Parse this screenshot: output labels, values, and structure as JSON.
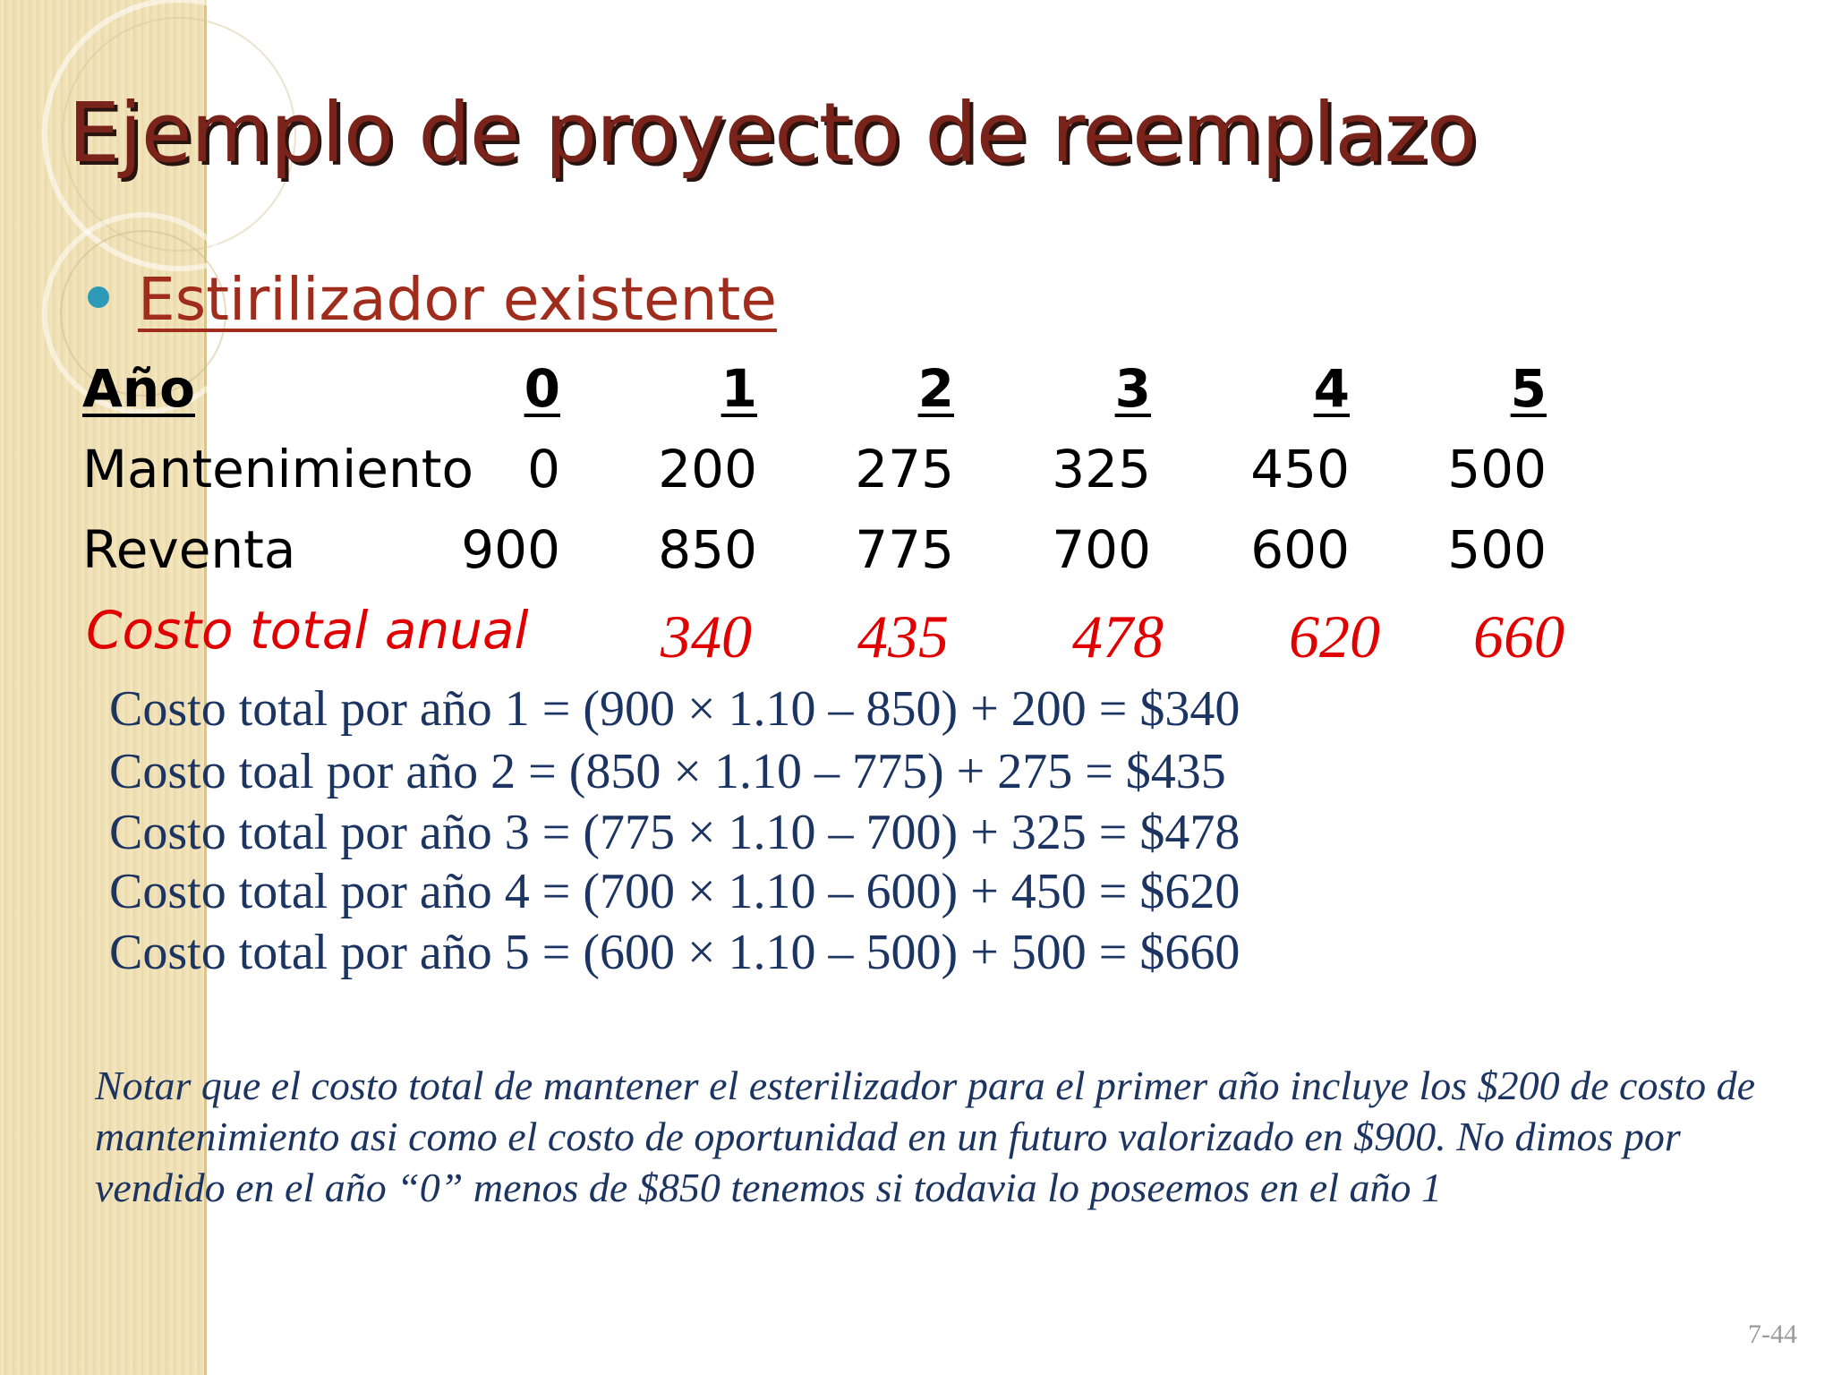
{
  "slide": {
    "title": "Ejemplo de proyecto de reemplazo",
    "subtitle": "Estirilizador existente",
    "table": {
      "header_label": "Año",
      "years": [
        "0",
        "1",
        "2",
        "3",
        "4",
        "5"
      ],
      "rows": [
        {
          "label": "Mantenimiento",
          "values": [
            "0",
            "200",
            "275",
            "325",
            "450",
            "500"
          ]
        },
        {
          "label": "Reventa",
          "values": [
            "900",
            "850",
            "775",
            "700",
            "600",
            "500"
          ]
        }
      ],
      "total_label": "Costo total anual",
      "total_values": [
        "340",
        "435",
        "478",
        "620",
        "660"
      ]
    },
    "calculations": [
      "Costo total por año 1 = (900 × 1.10 – 850) + 200 = $340",
      "Costo toal por año 2 = (850 × 1.10 – 775) + 275 = $435",
      "Costo total por año 3 = (775 × 1.10 – 700) + 325 = $478",
      "Costo total por año 4 = (700 × 1.10 – 600) + 450 = $620",
      "Costo total por año 5 = (600 × 1.10 – 500) + 500 = $660"
    ],
    "note": "Notar que el costo total de mantener el esterilizador para el primer año incluye los $200 de costo de mantenimiento asi como el costo de oportunidad en un futuro valorizado en $900. No dimos por vendido en el año “0” menos de $850 tenemos  si todavia lo poseemos en el año 1",
    "page_number": "7-44",
    "colors": {
      "title": "#7a231b",
      "subtitle": "#a02c1c",
      "total_row": "#e00000",
      "calc_text": "#1c3461",
      "bullet": "#2d9ab7",
      "sidebar": "#efe0b3"
    }
  }
}
